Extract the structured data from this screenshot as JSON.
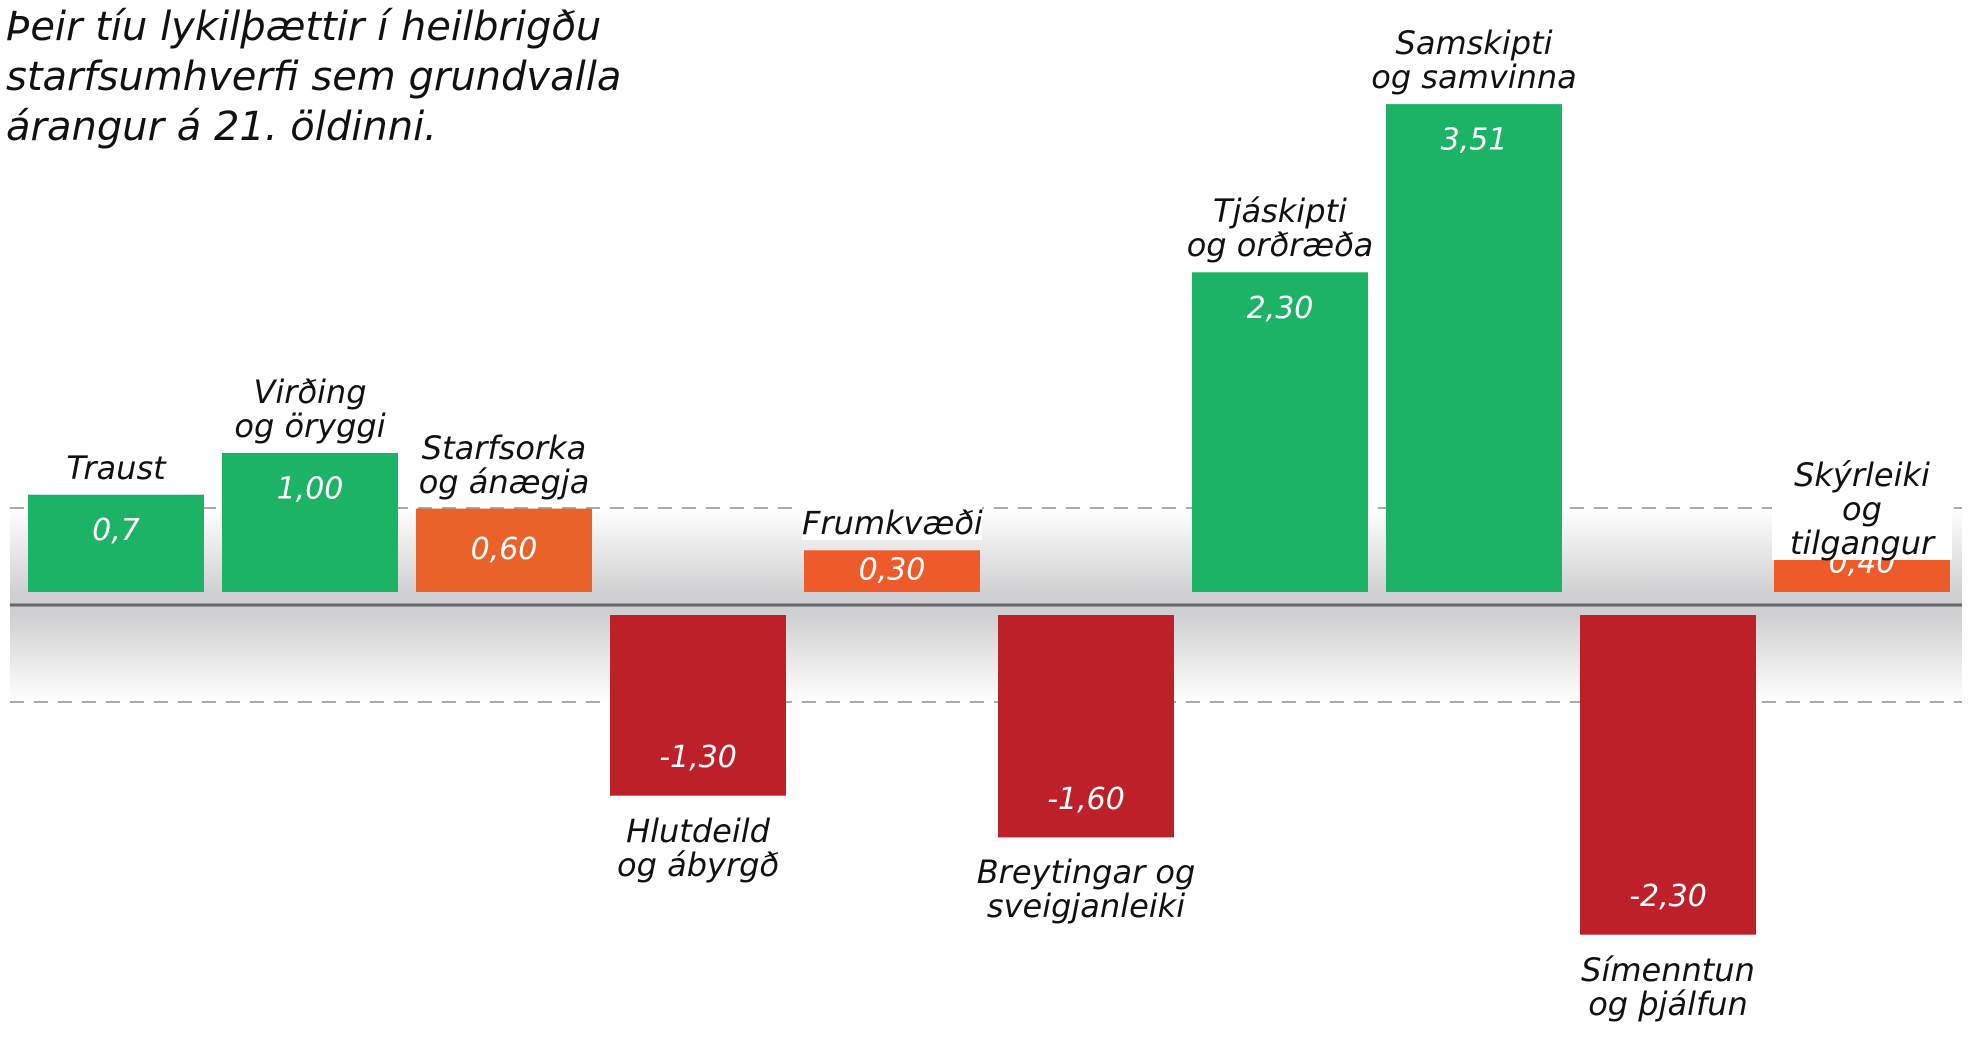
{
  "chart_data": {
    "type": "bar",
    "title": "Þeir tíu lykilþættir í heilbrigðu\nstarfsumhverfi sem grundvalla\nárangur á 21. öldinni.",
    "categories": [
      "Traust",
      "Virðing\nog öryggi",
      "Starfsorka\nog ánægja",
      "Hlutdeild\nog ábyrgð",
      "Frumkvæði",
      "Breytingar og\nsveigjanleiki",
      "Tjáskipti\nog orðræða",
      "Samskipti\nog samvinna",
      "Símenntun\nog þjálfun",
      "Skýrleiki\nog tilgangur"
    ],
    "values": [
      0.7,
      1.0,
      0.6,
      -1.3,
      0.3,
      -1.6,
      2.3,
      3.51,
      -2.3,
      0.4
    ],
    "value_labels": [
      "0,7",
      "1,00",
      "0,60",
      "-1,30",
      "0,30",
      "-1,60",
      "2,30",
      "3,51",
      "-2,30",
      "0,40"
    ],
    "colors": [
      "#1db366",
      "#1db366",
      "#e8622a",
      "#be2029",
      "#ef5a2b",
      "#be2029",
      "#1db366",
      "#1db366",
      "#be2029",
      "#ef5a2b"
    ]
  }
}
